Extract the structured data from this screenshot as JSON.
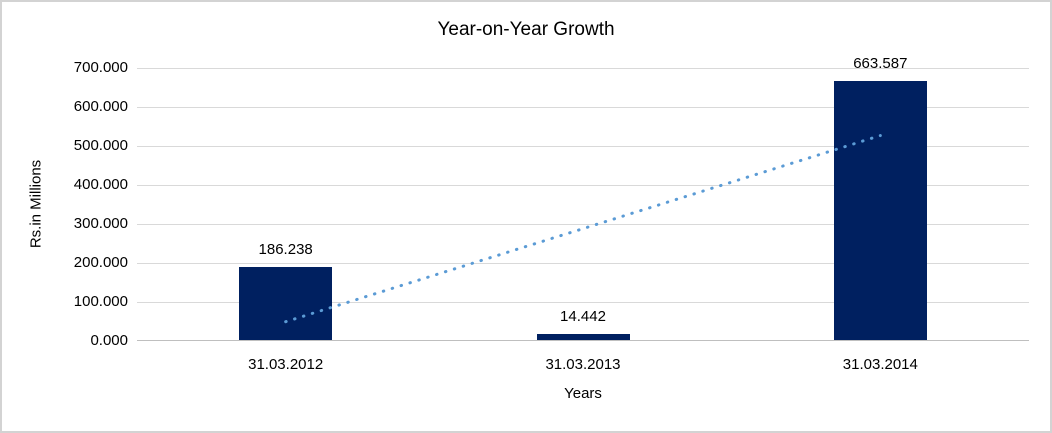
{
  "window": {
    "background": "#ffffff",
    "border_color": "#d3d3d3"
  },
  "chart_data": {
    "type": "bar",
    "title": "Year-on-Year Growth",
    "xlabel": "Years",
    "ylabel": "Rs.in Millions",
    "categories": [
      "31.03.2012",
      "31.03.2013",
      "31.03.2014"
    ],
    "values": [
      186.238,
      14.442,
      663.587
    ],
    "data_labels": [
      "186.238",
      "14.442",
      "663.587"
    ],
    "ylim": [
      0,
      700
    ],
    "ytick_interval": 100,
    "ytick_labels": [
      "0.000",
      "100.000",
      "200.000",
      "300.000",
      "400.000",
      "500.000",
      "600.000",
      "700.000"
    ],
    "grid": true,
    "legend": "none",
    "bar_color": "#002060",
    "gridline_color": "#d9d9d9",
    "axis_line_color": "#bfbfbf",
    "text_color": "#000000",
    "trendline": {
      "fit": "linear",
      "style": "dotted",
      "color": "#5b9bd5",
      "endpoint_values": [
        49.4,
        526.8
      ]
    }
  }
}
